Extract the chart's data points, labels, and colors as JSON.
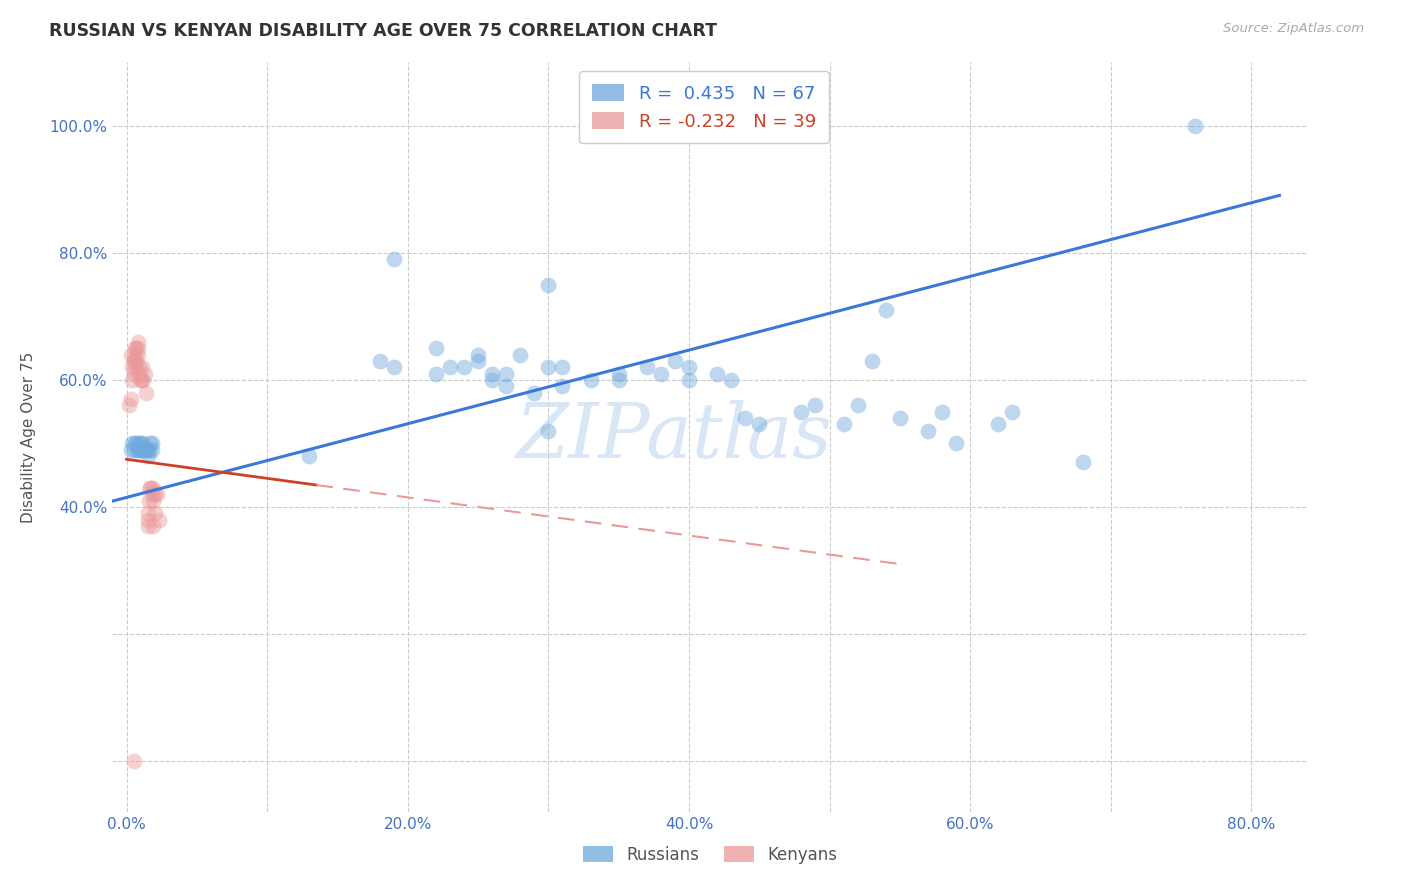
{
  "title": "RUSSIAN VS KENYAN DISABILITY AGE OVER 75 CORRELATION CHART",
  "source": "Source: ZipAtlas.com",
  "ylabel_label": "Disability Age Over 75",
  "watermark": "ZIPatlas",
  "legend_r_russian": "R =  0.435",
  "legend_n_russian": "N = 67",
  "legend_r_kenyan": "R = -0.232",
  "legend_n_kenyan": "N = 39",
  "xlim": [
    -0.01,
    0.84
  ],
  "ylim": [
    -0.08,
    1.1
  ],
  "russian_color": "#6fa8dc",
  "kenyan_color": "#ea9999",
  "russian_line_color": "#3c78d8",
  "kenyan_line_solid_color": "#cc4125",
  "kenyan_line_dash_color": "#ea9999",
  "background_color": "#ffffff",
  "grid_color": "#cccccc",
  "title_color": "#333333",
  "axis_tick_color": "#4472c4",
  "russians_x": [
    0.003,
    0.004,
    0.005,
    0.006,
    0.007,
    0.008,
    0.008,
    0.009,
    0.01,
    0.01,
    0.011,
    0.012,
    0.013,
    0.014,
    0.015,
    0.015,
    0.016,
    0.017,
    0.018,
    0.018,
    0.19,
    0.22,
    0.22,
    0.24,
    0.25,
    0.25,
    0.26,
    0.26,
    0.27,
    0.27,
    0.28,
    0.29,
    0.3,
    0.3,
    0.31,
    0.31,
    0.33,
    0.35,
    0.35,
    0.37,
    0.38,
    0.39,
    0.4,
    0.4,
    0.42,
    0.43,
    0.44,
    0.45,
    0.48,
    0.49,
    0.51,
    0.52,
    0.53,
    0.54,
    0.55,
    0.57,
    0.58,
    0.59,
    0.62,
    0.63,
    0.68,
    0.3,
    0.76,
    0.13,
    0.18,
    0.19,
    0.23
  ],
  "russians_y": [
    0.49,
    0.5,
    0.49,
    0.5,
    0.5,
    0.49,
    0.49,
    0.5,
    0.49,
    0.5,
    0.49,
    0.5,
    0.49,
    0.49,
    0.49,
    0.48,
    0.49,
    0.5,
    0.5,
    0.49,
    0.79,
    0.65,
    0.61,
    0.62,
    0.63,
    0.64,
    0.6,
    0.61,
    0.59,
    0.61,
    0.64,
    0.58,
    0.62,
    0.75,
    0.59,
    0.62,
    0.6,
    0.61,
    0.6,
    0.62,
    0.61,
    0.63,
    0.6,
    0.62,
    0.61,
    0.6,
    0.54,
    0.53,
    0.55,
    0.56,
    0.53,
    0.56,
    0.63,
    0.71,
    0.54,
    0.52,
    0.55,
    0.5,
    0.53,
    0.55,
    0.47,
    0.52,
    1.0,
    0.48,
    0.63,
    0.62,
    0.62
  ],
  "kenyans_x": [
    0.002,
    0.003,
    0.004,
    0.005,
    0.005,
    0.006,
    0.006,
    0.007,
    0.008,
    0.008,
    0.009,
    0.009,
    0.01,
    0.01,
    0.011,
    0.012,
    0.013,
    0.014,
    0.015,
    0.015,
    0.016,
    0.017,
    0.018,
    0.019,
    0.019,
    0.02,
    0.02,
    0.022,
    0.023,
    0.003,
    0.004,
    0.005,
    0.006,
    0.007,
    0.008,
    0.015,
    0.017,
    0.019,
    0.005
  ],
  "kenyans_y": [
    0.56,
    0.57,
    0.6,
    0.61,
    0.63,
    0.62,
    0.65,
    0.63,
    0.65,
    0.64,
    0.61,
    0.62,
    0.6,
    0.6,
    0.62,
    0.6,
    0.61,
    0.58,
    0.38,
    0.39,
    0.41,
    0.43,
    0.42,
    0.43,
    0.41,
    0.42,
    0.39,
    0.42,
    0.38,
    0.64,
    0.62,
    0.63,
    0.64,
    0.65,
    0.66,
    0.37,
    0.43,
    0.37,
    0.0
  ],
  "marker_size": 130,
  "marker_alpha": 0.45
}
